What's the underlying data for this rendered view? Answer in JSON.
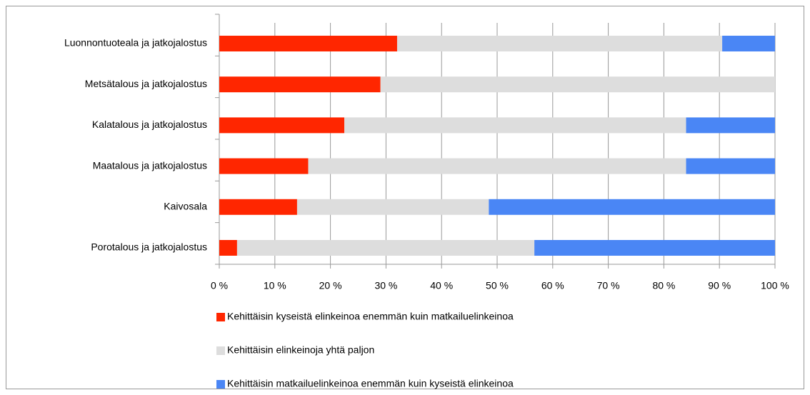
{
  "chart_data": {
    "type": "stacked_barh",
    "categories": [
      "Luonnontuoteala ja jatkojalostus",
      "Metsätalous ja jatkojalostus",
      "Kalatalous ja jatkojalostus",
      "Maatalous ja jatkojalostus",
      "Kaivosala",
      "Porotalous ja jatkojalostus"
    ],
    "series": [
      {
        "name": "Kehittäisin kyseistä elinkeinoa enemmän kuin matkailuelinkeinoa",
        "color": "#ff2600",
        "values": [
          32,
          29,
          22.5,
          16,
          14,
          3.2
        ]
      },
      {
        "name": "Kehittäisin elinkeinoja yhtä paljon",
        "color": "#dddddd",
        "values": [
          58.5,
          71,
          61.5,
          68,
          34.5,
          53.5
        ]
      },
      {
        "name": "Kehittäisin matkailuelinkeinoa enemmän kuin kyseistä elinkeinoa",
        "color": "#4a86f5",
        "values": [
          9.5,
          0,
          16,
          16,
          51.5,
          43.3
        ]
      }
    ],
    "xlim": [
      0,
      100
    ],
    "xticks": [
      {
        "value": 0,
        "label": "0 %"
      },
      {
        "value": 10,
        "label": "10 %"
      },
      {
        "value": 20,
        "label": "20 %"
      },
      {
        "value": 30,
        "label": "30 %"
      },
      {
        "value": 40,
        "label": "40 %"
      },
      {
        "value": 50,
        "label": "50 %"
      },
      {
        "value": 60,
        "label": "60 %"
      },
      {
        "value": 70,
        "label": "70 %"
      },
      {
        "value": 80,
        "label": "80 %"
      },
      {
        "value": 90,
        "label": "90 %"
      },
      {
        "value": 100,
        "label": "100 %"
      }
    ],
    "grid": true
  }
}
